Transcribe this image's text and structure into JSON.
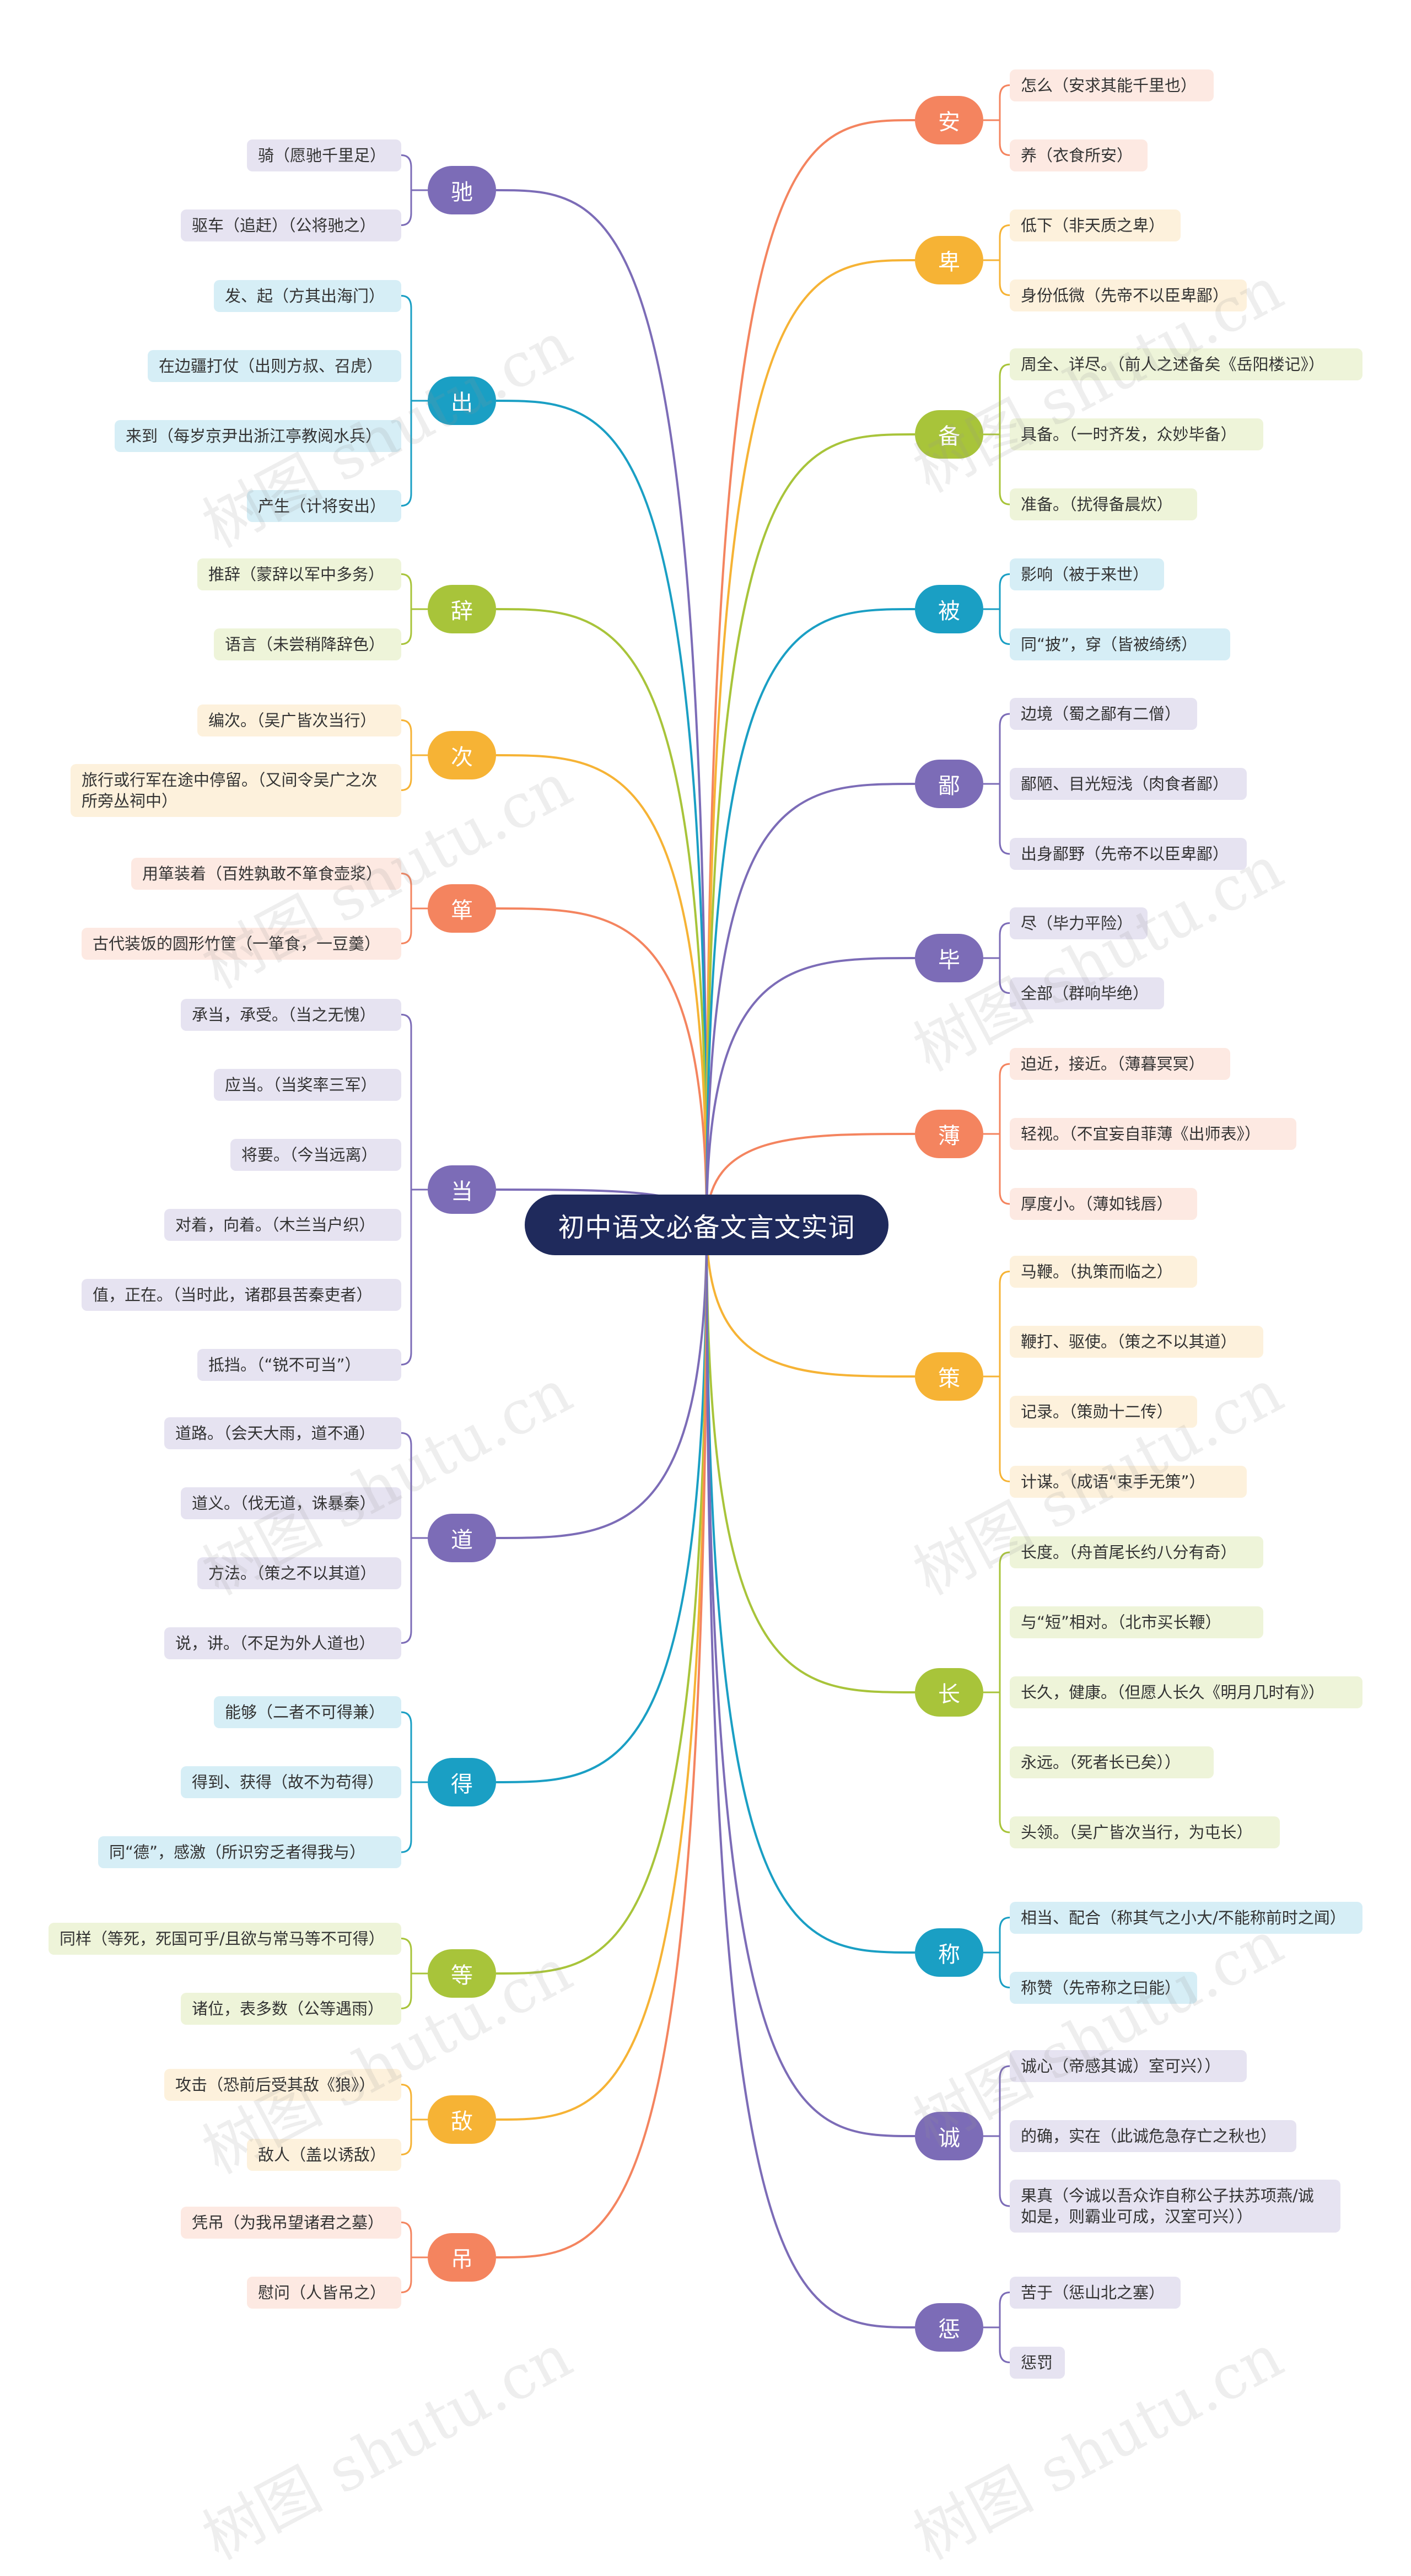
{
  "title": "初中语文必备文言文实词",
  "colors": {
    "root": "#1f2a5c",
    "orange": {
      "hub": "#f4845f",
      "leaf": "#fde9e2",
      "text": "#ffffff"
    },
    "amber": {
      "hub": "#f6b335",
      "leaf": "#fdf1dc",
      "text": "#ffffff"
    },
    "lime": {
      "hub": "#a8c43a",
      "leaf": "#eef4d9",
      "text": "#ffffff"
    },
    "teal": {
      "hub": "#1a9fc4",
      "leaf": "#d6eef6",
      "text": "#ffffff"
    },
    "purple": {
      "hub": "#7c6cb7",
      "leaf": "#e6e3f1",
      "text": "#ffffff"
    }
  },
  "branches": [
    {
      "label": "驰",
      "color": "purple",
      "items": [
        "骑（愿驰千里足）",
        "驱车（追赶）（公将驰之）"
      ]
    },
    {
      "label": "出",
      "color": "teal",
      "items": [
        "发、起（方其出海门）",
        "在边疆打仗（出则方叔、召虎）",
        "来到（每岁京尹出浙江亭教阅水兵）",
        "产生（计将安出）"
      ]
    },
    {
      "label": "辞",
      "color": "lime",
      "items": [
        "推辞（蒙辞以军中多务）",
        "语言（未尝稍降辞色）"
      ]
    },
    {
      "label": "次",
      "color": "amber",
      "items": [
        "编次。（吴广皆次当行）",
        "旅行或行军在途中停留。（又间令吴广之次所旁丛祠中）"
      ]
    },
    {
      "label": "箪",
      "color": "orange",
      "items": [
        "用箪装着（百姓孰敢不箪食壶浆）",
        "古代装饭的圆形竹筐（一箪食，一豆羹）"
      ]
    },
    {
      "label": "当",
      "color": "purple",
      "items": [
        "承当，承受。（当之无愧）",
        "应当。（当奖率三军）",
        "将要。（今当远离）",
        "对着，向着。（木兰当户织）",
        "值，正在。（当时此，诸郡县苦秦吏者）",
        "抵挡。（“锐不可当”）"
      ]
    },
    {
      "label": "道",
      "color": "purple",
      "items": [
        "道路。（会天大雨，道不通）",
        "道义。（伐无道，诛暴秦）",
        "方法。（策之不以其道）",
        "说，讲。（不足为外人道也）"
      ]
    },
    {
      "label": "得",
      "color": "teal",
      "items": [
        "能够（二者不可得兼）",
        "得到、获得（故不为苟得）",
        "同“德”，感激（所识穷乏者得我与）"
      ]
    },
    {
      "label": "等",
      "color": "lime",
      "items": [
        "同样（等死，死国可乎/且欲与常马等不可得）",
        "诸位，表多数（公等遇雨）"
      ]
    },
    {
      "label": "敌",
      "color": "amber",
      "items": [
        "攻击（恐前后受其敌《狼》）",
        "敌人（盖以诱敌）"
      ]
    },
    {
      "label": "吊",
      "color": "orange",
      "items": [
        "凭吊（为我吊望诸君之墓）",
        "慰问（人皆吊之）"
      ]
    },
    {
      "label": "安",
      "color": "orange",
      "items": [
        "怎么（安求其能千里也）",
        "养（衣食所安）"
      ]
    },
    {
      "label": "卑",
      "color": "amber",
      "items": [
        "低下（非天质之卑）",
        "身份低微（先帝不以臣卑鄙）"
      ]
    },
    {
      "label": "备",
      "color": "lime",
      "items": [
        "周全、详尽。（前人之述备矣《岳阳楼记》）",
        "具备。（一时齐发，众妙毕备）",
        "准备。（扰得备晨炊）"
      ]
    },
    {
      "label": "被",
      "color": "teal",
      "items": [
        "影响（被于来世）",
        "同“披”，穿（皆被绮绣）"
      ]
    },
    {
      "label": "鄙",
      "color": "purple",
      "items": [
        "边境（蜀之鄙有二僧）",
        "鄙陋、目光短浅（肉食者鄙）",
        "出身鄙野（先帝不以臣卑鄙）"
      ]
    },
    {
      "label": "毕",
      "color": "purple",
      "items": [
        "尽（毕力平险）",
        "全部（群响毕绝）"
      ]
    },
    {
      "label": "薄",
      "color": "orange",
      "items": [
        "迫近，接近。（薄暮冥冥）",
        "轻视。（不宜妄自菲薄《出师表》）",
        "厚度小。（薄如钱唇）"
      ]
    },
    {
      "label": "策",
      "color": "amber",
      "items": [
        "马鞭。（执策而临之）",
        "鞭打、驱使。（策之不以其道）",
        "记录。（策勋十二传）",
        "计谋。（成语“束手无策”）"
      ]
    },
    {
      "label": "长",
      "color": "lime",
      "items": [
        "长度。（舟首尾长约八分有奇）",
        "与“短”相对。（北市买长鞭）",
        "长久，健康。（但愿人长久《明月几时有》）",
        "永远。（死者长已矣））",
        "头领。（吴广皆次当行，为屯长）"
      ]
    },
    {
      "label": "称",
      "color": "teal",
      "items": [
        "相当、配合（称其气之小大/不能称前时之闻）",
        "称赞（先帝称之曰能）"
      ]
    },
    {
      "label": "诚",
      "color": "purple",
      "items": [
        "诚心（帝感其诚）室可兴））",
        "的确，实在（此诚危急存亡之秋也）",
        "果真（今诚以吾众诈自称公子扶苏项燕/诚如是，则霸业可成，汉室可兴））"
      ]
    },
    {
      "label": "惩",
      "color": "purple",
      "items": [
        "苦于（惩山北之塞）",
        "惩罚"
      ]
    }
  ],
  "watermark": "树图 shutu.cn"
}
